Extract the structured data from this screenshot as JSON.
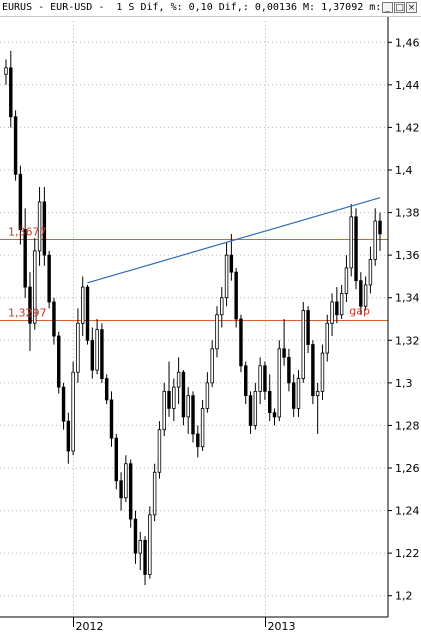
{
  "window": {
    "title": "EURUS - EUR-USD -  1 S Dif, %: 0,10 Dif,: 0,00136 M: 1,37092 m:",
    "minimize_icon": "minimize-icon",
    "maximize_icon": "maximize-icon",
    "close_icon": "close-icon"
  },
  "chart_data": {
    "type": "candlestick",
    "symbol": "EURUS",
    "pair": "EUR-USD",
    "period": "1 S",
    "dif_pct": "0,10",
    "dif": "0,00136",
    "max": "1,37092",
    "ylim": [
      1.19,
      1.47
    ],
    "yticks": [
      "1,46",
      "1,44",
      "1,42",
      "1,4",
      "1,38",
      "1,36",
      "1,34",
      "1,32",
      "1,3",
      "1,28",
      "1,26",
      "1,24",
      "1,22",
      "1,2"
    ],
    "xticks": [
      {
        "label": "2012",
        "index": 14
      },
      {
        "label": "2013",
        "index": 54
      }
    ],
    "colors": {
      "up": "#ffffff",
      "down": "#000000",
      "outline": "#000000",
      "hline": "#d9622b",
      "trend": "#2f6db3",
      "annotation": "#c8382a"
    },
    "series": [
      [
        1.445,
        1.452,
        1.44,
        1.448
      ],
      [
        1.448,
        1.456,
        1.42,
        1.425
      ],
      [
        1.425,
        1.428,
        1.395,
        1.398
      ],
      [
        1.398,
        1.402,
        1.365,
        1.372
      ],
      [
        1.372,
        1.382,
        1.34,
        1.345
      ],
      [
        1.345,
        1.352,
        1.315,
        1.328
      ],
      [
        1.328,
        1.368,
        1.325,
        1.362
      ],
      [
        1.362,
        1.392,
        1.355,
        1.385
      ],
      [
        1.385,
        1.392,
        1.355,
        1.36
      ],
      [
        1.36,
        1.362,
        1.335,
        1.338
      ],
      [
        1.338,
        1.34,
        1.318,
        1.322
      ],
      [
        1.322,
        1.324,
        1.295,
        1.298
      ],
      [
        1.298,
        1.3,
        1.278,
        1.282
      ],
      [
        1.282,
        1.286,
        1.262,
        1.268
      ],
      [
        1.268,
        1.31,
        1.266,
        1.305
      ],
      [
        1.305,
        1.335,
        1.3,
        1.328
      ],
      [
        1.328,
        1.35,
        1.322,
        1.345
      ],
      [
        1.345,
        1.346,
        1.318,
        1.32
      ],
      [
        1.32,
        1.326,
        1.302,
        1.306
      ],
      [
        1.306,
        1.33,
        1.304,
        1.325
      ],
      [
        1.325,
        1.328,
        1.3,
        1.302
      ],
      [
        1.302,
        1.304,
        1.29,
        1.292
      ],
      [
        1.292,
        1.296,
        1.27,
        1.274
      ],
      [
        1.274,
        1.276,
        1.25,
        1.254
      ],
      [
        1.254,
        1.258,
        1.24,
        1.246
      ],
      [
        1.246,
        1.266,
        1.244,
        1.262
      ],
      [
        1.262,
        1.264,
        1.232,
        1.236
      ],
      [
        1.236,
        1.24,
        1.215,
        1.22
      ],
      [
        1.22,
        1.23,
        1.212,
        1.226
      ],
      [
        1.226,
        1.228,
        1.205,
        1.21
      ],
      [
        1.21,
        1.242,
        1.208,
        1.238
      ],
      [
        1.238,
        1.262,
        1.235,
        1.258
      ],
      [
        1.258,
        1.282,
        1.255,
        1.278
      ],
      [
        1.278,
        1.3,
        1.275,
        1.296
      ],
      [
        1.296,
        1.31,
        1.284,
        1.288
      ],
      [
        1.288,
        1.302,
        1.282,
        1.298
      ],
      [
        1.298,
        1.312,
        1.29,
        1.305
      ],
      [
        1.305,
        1.306,
        1.28,
        1.284
      ],
      [
        1.284,
        1.298,
        1.276,
        1.294
      ],
      [
        1.294,
        1.296,
        1.272,
        1.276
      ],
      [
        1.276,
        1.28,
        1.265,
        1.27
      ],
      [
        1.27,
        1.292,
        1.268,
        1.288
      ],
      [
        1.288,
        1.305,
        1.286,
        1.3
      ],
      [
        1.3,
        1.32,
        1.298,
        1.316
      ],
      [
        1.316,
        1.336,
        1.312,
        1.332
      ],
      [
        1.332,
        1.345,
        1.326,
        1.34
      ],
      [
        1.34,
        1.366,
        1.336,
        1.36
      ],
      [
        1.36,
        1.37,
        1.348,
        1.352
      ],
      [
        1.352,
        1.354,
        1.326,
        1.33
      ],
      [
        1.33,
        1.332,
        1.305,
        1.308
      ],
      [
        1.308,
        1.31,
        1.29,
        1.294
      ],
      [
        1.294,
        1.296,
        1.276,
        1.28
      ],
      [
        1.28,
        1.3,
        1.278,
        1.296
      ],
      [
        1.296,
        1.312,
        1.29,
        1.308
      ],
      [
        1.308,
        1.31,
        1.292,
        1.296
      ],
      [
        1.296,
        1.304,
        1.282,
        1.286
      ],
      [
        1.286,
        1.288,
        1.28,
        1.284
      ],
      [
        1.284,
        1.32,
        1.282,
        1.316
      ],
      [
        1.316,
        1.33,
        1.308,
        1.312
      ],
      [
        1.312,
        1.316,
        1.296,
        1.3
      ],
      [
        1.3,
        1.304,
        1.284,
        1.288
      ],
      [
        1.288,
        1.306,
        1.284,
        1.302
      ],
      [
        1.302,
        1.338,
        1.3,
        1.334
      ],
      [
        1.334,
        1.336,
        1.314,
        1.318
      ],
      [
        1.318,
        1.32,
        1.29,
        1.294
      ],
      [
        1.294,
        1.3,
        1.276,
        1.296
      ],
      [
        1.296,
        1.318,
        1.292,
        1.314
      ],
      [
        1.314,
        1.332,
        1.31,
        1.328
      ],
      [
        1.328,
        1.342,
        1.322,
        1.338
      ],
      [
        1.338,
        1.345,
        1.328,
        1.332
      ],
      [
        1.332,
        1.346,
        1.33,
        1.342
      ],
      [
        1.342,
        1.36,
        1.338,
        1.354
      ],
      [
        1.354,
        1.384,
        1.35,
        1.378
      ],
      [
        1.378,
        1.382,
        1.344,
        1.348
      ],
      [
        1.348,
        1.352,
        1.332,
        1.336
      ],
      [
        1.336,
        1.35,
        1.334,
        1.346
      ],
      [
        1.346,
        1.364,
        1.342,
        1.358
      ],
      [
        1.358,
        1.382,
        1.355,
        1.376
      ],
      [
        1.376,
        1.38,
        1.362,
        1.37
      ]
    ],
    "hlines": [
      {
        "value": 1.3677,
        "label": "1,3677"
      },
      {
        "value": 1.3297,
        "label": "1,3297"
      }
    ],
    "trendline": {
      "from": {
        "index": 17,
        "value": 1.347
      },
      "to": {
        "index": 78,
        "value": 1.387
      }
    },
    "annotations": [
      {
        "text": "gap",
        "index": 72,
        "value": 1.332
      }
    ]
  }
}
